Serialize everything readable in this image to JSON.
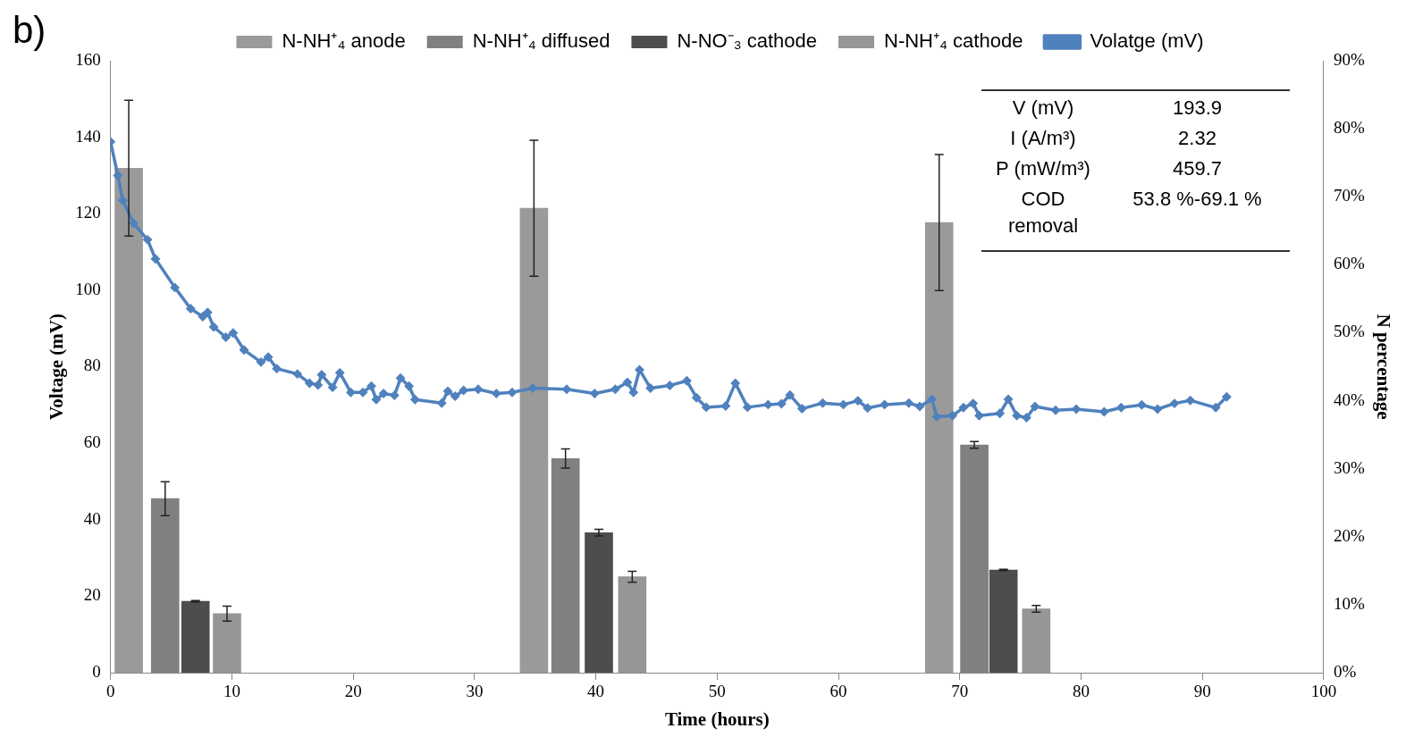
{
  "chart_data": {
    "type": "bar",
    "title": "b)",
    "xlabel": "Time (hours)",
    "ylabel": "Voltage (mV)",
    "y2label": "N percentage",
    "xlim": [
      0,
      100
    ],
    "xticks": [
      0,
      10,
      20,
      30,
      40,
      50,
      60,
      70,
      80,
      90,
      100
    ],
    "ylim": [
      0,
      160
    ],
    "yticks": [
      0,
      20,
      40,
      60,
      80,
      100,
      120,
      140,
      160
    ],
    "y2lim": [
      0,
      90
    ],
    "y2ticks": [
      {
        "value": 0,
        "label": "0%"
      },
      {
        "value": 10,
        "label": "10%"
      },
      {
        "value": 20,
        "label": "20%"
      },
      {
        "value": 30,
        "label": "30%"
      },
      {
        "value": 40,
        "label": "40%"
      },
      {
        "value": 50,
        "label": "50%"
      },
      {
        "value": 60,
        "label": "60%"
      },
      {
        "value": 70,
        "label": "70%"
      },
      {
        "value": 80,
        "label": "80%"
      },
      {
        "value": 90,
        "label": "90%"
      }
    ],
    "grid": false,
    "legend": "top",
    "annotations": [
      "V (mV)",
      "193.9",
      "I (A/m³)",
      "2.32",
      "P (mW/m³)",
      "459.7",
      "COD removal",
      "53.8 %-69.1 %"
    ],
    "series": [
      {
        "name": "N-NH⁺₄ anode",
        "axis": "y2",
        "color": "#9a9a9a",
        "x": [
          1.5,
          34.9,
          68.3
        ],
        "values": [
          74.2,
          68.3,
          66.2
        ],
        "errors": [
          10,
          10,
          10
        ]
      },
      {
        "name": "N-NH⁺₄ diffused",
        "axis": "y2",
        "color": "#808080",
        "x": [
          4.5,
          37.5,
          71.2
        ],
        "values": [
          25.6,
          31.5,
          33.5
        ],
        "errors": [
          2.5,
          1.4,
          0.5
        ]
      },
      {
        "name": "N-NO⁻₃ cathode",
        "axis": "y2",
        "color": "#4d4d4d",
        "x": [
          7.0,
          40.25,
          73.6
        ],
        "values": [
          10.5,
          20.6,
          15.1
        ],
        "errors": [
          0.1,
          0.5,
          0.1
        ]
      },
      {
        "name": "N-NH⁺₄ cathode",
        "axis": "y2",
        "color": "#969696",
        "x": [
          9.6,
          43.0,
          76.3
        ],
        "values": [
          8.7,
          14.1,
          9.4
        ],
        "errors": [
          1.1,
          0.8,
          0.5
        ]
      },
      {
        "name": "Volatge (mV)",
        "type": "line",
        "axis": "y",
        "color": "#4f81bd",
        "marker": "diamond",
        "line_style": "solid",
        "x": [
          0,
          0.6,
          1.0,
          1.9,
          3.05,
          3.7,
          5.3,
          6.6,
          7.6,
          8.0,
          8.5,
          9.5,
          10.1,
          11.0,
          12.4,
          13.0,
          13.7,
          15.4,
          16.4,
          17.1,
          17.4,
          18.3,
          18.9,
          19.8,
          20.8,
          21.5,
          21.9,
          22.5,
          23.4,
          23.9,
          24.6,
          25.1,
          27.3,
          27.8,
          28.4,
          29.1,
          30.3,
          31.8,
          33.1,
          34.8,
          37.6,
          39.9,
          41.6,
          42.6,
          43.1,
          43.6,
          44.5,
          46.1,
          47.5,
          48.3,
          49.1,
          50.7,
          51.5,
          52.5,
          54.2,
          55.3,
          56.0,
          57.0,
          58.7,
          60.4,
          61.6,
          62.4,
          63.8,
          65.8,
          66.7,
          67.7,
          68.1,
          69.4,
          70.3,
          71.1,
          71.6,
          73.3,
          74.0,
          74.7,
          75.5,
          76.2,
          77.9,
          79.6,
          81.9,
          83.3,
          85.0,
          86.3,
          87.7,
          89.0,
          91.1,
          92.0
        ],
        "values": [
          138.8,
          130,
          123.5,
          117.5,
          113.2,
          108.2,
          100.7,
          95.2,
          93.1,
          94.2,
          90.4,
          87.7,
          88.8,
          84.4,
          81.2,
          82.5,
          79.5,
          78.1,
          75.7,
          75.2,
          77.9,
          74.6,
          78.4,
          73.3,
          73.3,
          74.9,
          71.4,
          73.0,
          72.5,
          77.0,
          74.9,
          71.4,
          70.5,
          73.6,
          72.3,
          73.8,
          74.1,
          73.0,
          73.3,
          74.4,
          74.1,
          73.0,
          74.1,
          75.9,
          73.3,
          79.2,
          74.4,
          75.1,
          76.3,
          71.9,
          69.4,
          69.7,
          75.7,
          69.4,
          70.1,
          70.3,
          72.6,
          69.0,
          70.5,
          70.1,
          71.1,
          69.2,
          70.1,
          70.5,
          69.6,
          71.5,
          66.9,
          67.2,
          69.3,
          70.4,
          67.2,
          67.8,
          71.5,
          67.2,
          66.7,
          69.6,
          68.6,
          68.9,
          68.2,
          69.3,
          70.0,
          68.9,
          70.4,
          71.2,
          69.3,
          72.1
        ]
      }
    ]
  }
}
